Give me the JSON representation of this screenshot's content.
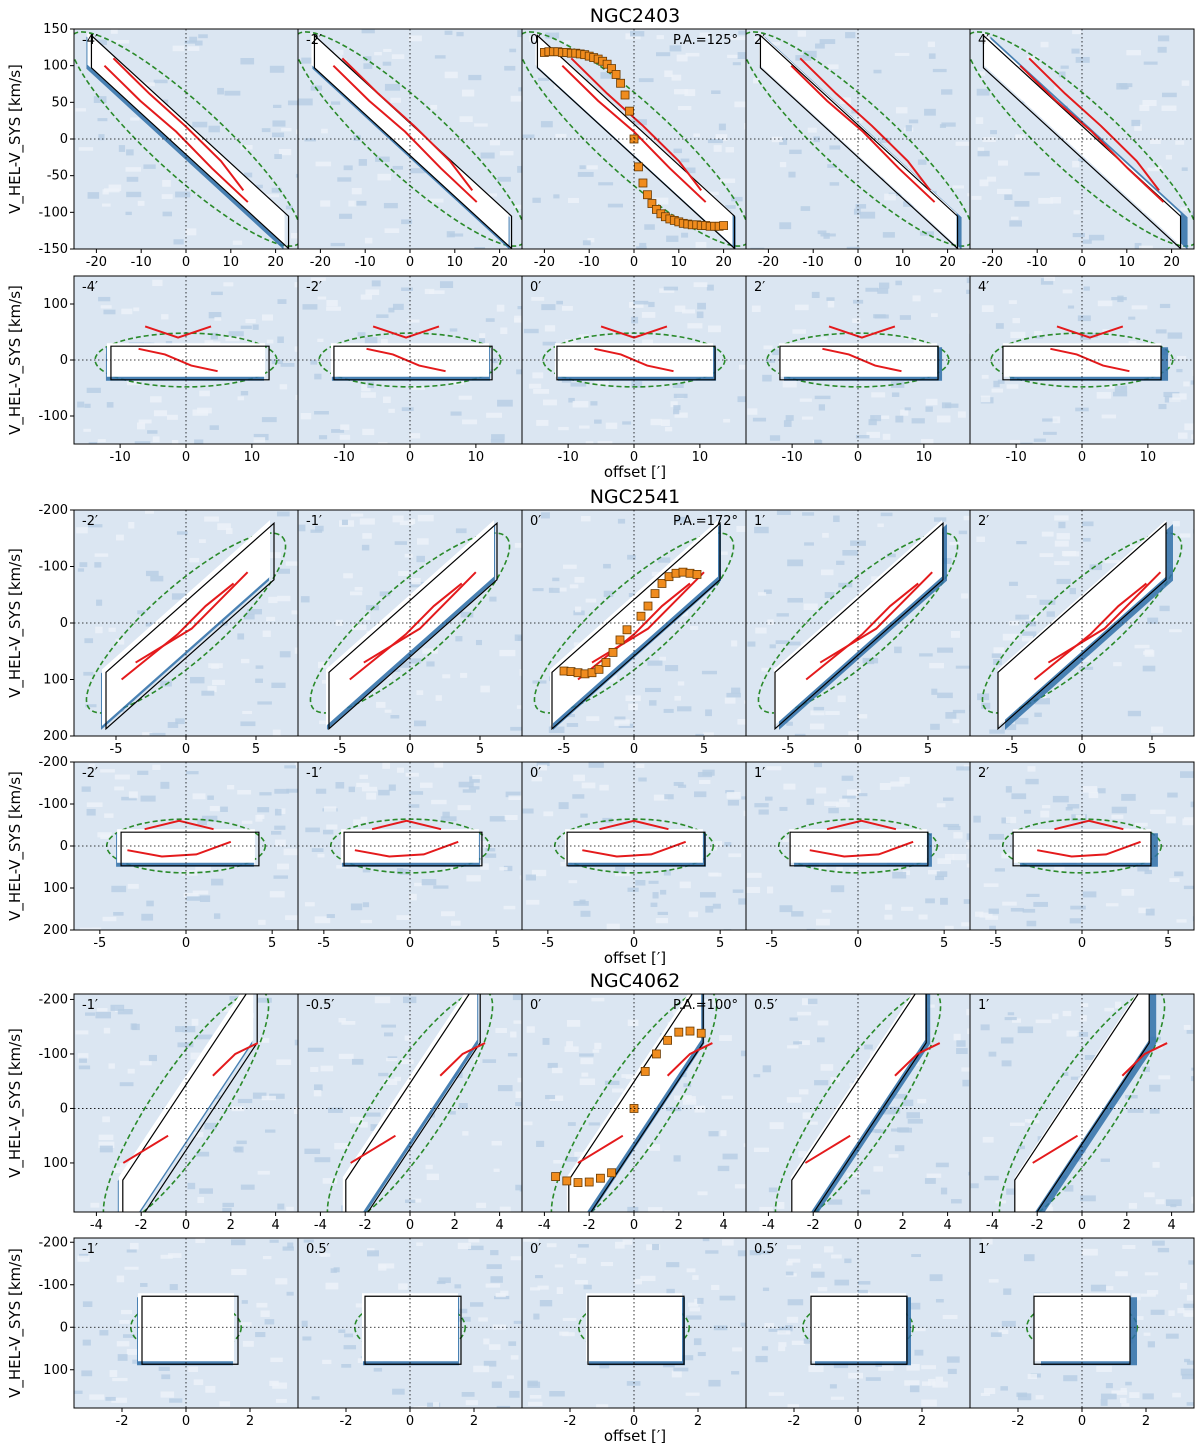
{
  "figure": {
    "shared_ylabel": "V_HEL-V_SYS [km/s]",
    "shared_xlabel": "offset [′]"
  },
  "chart_data": [
    {
      "type": "line",
      "title": "NGC2403",
      "xlabel": "",
      "ylabel": "V_HEL-V_SYS [km/s]",
      "xlim": [
        -25,
        25
      ],
      "ylim": [
        150,
        -150
      ],
      "xticks": [
        -20,
        -10,
        0,
        10,
        20
      ],
      "yticks": [
        -150,
        -100,
        -50,
        0,
        50,
        100,
        150
      ],
      "panel_labels": [
        "-4′",
        "-2′",
        "0′",
        "2′",
        "4′"
      ],
      "annotation": "P.A.=125°",
      "band": {
        "slope": -5.6,
        "width": 22,
        "extent": 22
      },
      "rotation_points": {
        "x": [
          -20,
          -19,
          -18,
          -17,
          -16,
          -15,
          -14,
          -13,
          -12,
          -11,
          -10,
          -9,
          -8,
          -7,
          -6,
          -5,
          -4,
          -3,
          -2,
          -1,
          0,
          1,
          2,
          3,
          4,
          5,
          6,
          7,
          8,
          9,
          10,
          11,
          12,
          13,
          14,
          15,
          16,
          17,
          18,
          19,
          20
        ],
        "y": [
          118,
          119,
          119,
          119,
          118,
          118,
          117,
          117,
          116,
          115,
          113,
          111,
          109,
          106,
          102,
          96,
          88,
          76,
          60,
          38,
          0,
          -38,
          -60,
          -76,
          -88,
          -96,
          -102,
          -106,
          -109,
          -111,
          -113,
          -115,
          -116,
          -117,
          -117,
          -118,
          -118,
          -119,
          -119,
          -119,
          -118
        ]
      },
      "red_models": [
        {
          "x": [
            -16,
            -8,
            0,
            8,
            16
          ],
          "y": [
            100,
            52,
            10,
            -40,
            -86
          ]
        },
        {
          "x": [
            -14,
            -6,
            2,
            10,
            15
          ],
          "y": [
            110,
            62,
            18,
            -30,
            -70
          ]
        }
      ]
    },
    {
      "type": "line",
      "title": "",
      "xlabel": "offset [′]",
      "ylabel": "V_HEL-V_SYS [km/s]",
      "xlim": [
        -17,
        17
      ],
      "ylim": [
        150,
        -150
      ],
      "xticks": [
        -10,
        0,
        10
      ],
      "yticks": [
        -100,
        0,
        100
      ],
      "panel_labels": [
        "-4′",
        "-2′",
        "0′",
        "2′",
        "4′"
      ],
      "band": {
        "slope": 0,
        "width": 30,
        "extent": 12
      },
      "red_models": [
        {
          "x": [
            -6,
            -2,
            2,
            6
          ],
          "y": [
            20,
            10,
            -10,
            -20
          ]
        },
        {
          "x": [
            -5,
            0,
            5
          ],
          "y": [
            60,
            40,
            60
          ]
        }
      ]
    },
    {
      "type": "line",
      "title": "NGC2541",
      "xlabel": "",
      "ylabel": "V_HEL-V_SYS [km/s]",
      "xlim": [
        -8,
        8
      ],
      "ylim": [
        -200,
        200
      ],
      "xticks": [
        -5,
        0,
        5
      ],
      "yticks": [
        -200,
        -100,
        0,
        100,
        200
      ],
      "panel_labels": [
        "-2′",
        "-1′",
        "0′",
        "1′",
        "2′"
      ],
      "annotation": "P.A.=172°",
      "band": {
        "slope": -22,
        "width": 50,
        "extent": 6
      },
      "rotation_points": {
        "x": [
          -5,
          -4.5,
          -4,
          -3.5,
          -3,
          -2.5,
          -2,
          -1.5,
          -1,
          -0.5,
          0.5,
          1,
          1.5,
          2,
          2.5,
          3,
          3.5,
          4,
          4.5
        ],
        "y": [
          85,
          86,
          88,
          90,
          88,
          82,
          70,
          52,
          30,
          12,
          -12,
          -30,
          -52,
          -70,
          -82,
          -88,
          -90,
          -88,
          -86
        ]
      },
      "red_models": [
        {
          "x": [
            -3,
            -1,
            1,
            3,
            5
          ],
          "y": [
            70,
            40,
            10,
            -40,
            -90
          ]
        },
        {
          "x": [
            -4,
            -2,
            0,
            2,
            4
          ],
          "y": [
            100,
            60,
            20,
            -30,
            -70
          ]
        }
      ]
    },
    {
      "type": "line",
      "title": "",
      "xlabel": "offset [′]",
      "ylabel": "V_HEL-V_SYS [km/s]",
      "xlim": [
        -6.5,
        6.5
      ],
      "ylim": [
        -200,
        200
      ],
      "xticks": [
        -5,
        0,
        5
      ],
      "yticks": [
        -200,
        -100,
        0,
        100,
        200
      ],
      "panel_labels": [
        "-2′",
        "-1′",
        "0′",
        "1′",
        "2′"
      ],
      "band": {
        "slope": 0,
        "width": 40,
        "extent": 4
      },
      "red_models": [
        {
          "x": [
            -3,
            -1,
            1,
            3
          ],
          "y": [
            10,
            25,
            20,
            -10
          ]
        },
        {
          "x": [
            -2,
            0,
            2
          ],
          "y": [
            -40,
            -60,
            -40
          ]
        }
      ]
    },
    {
      "type": "line",
      "title": "NGC4062",
      "xlabel": "",
      "ylabel": "V_HEL-V_SYS [km/s]",
      "xlim": [
        -5,
        5
      ],
      "ylim": [
        -210,
        190
      ],
      "xticks": [
        -4,
        -2,
        0,
        2,
        4
      ],
      "yticks": [
        -200,
        -100,
        0,
        100
      ],
      "panel_labels": [
        "-1′",
        "-0.5′",
        "0′",
        "0.5′",
        "1′"
      ],
      "annotation": "P.A.=100°",
      "band": {
        "slope": -62,
        "width": 60,
        "extent": 3
      },
      "rotation_points": {
        "x": [
          -3.5,
          -3,
          -2.5,
          -2,
          -1.5,
          -1,
          0,
          0.5,
          1,
          1.5,
          2,
          2.5,
          3
        ],
        "y": [
          125,
          133,
          136,
          135,
          128,
          118,
          0,
          -68,
          -100,
          -125,
          -140,
          -142,
          -138
        ]
      },
      "red_models": [
        {
          "x": [
            -2.5,
            -1.5,
            -0.5
          ],
          "y": [
            100,
            75,
            50
          ]
        },
        {
          "x": [
            1.5,
            2.5,
            3.5
          ],
          "y": [
            -60,
            -100,
            -120
          ]
        }
      ]
    },
    {
      "type": "line",
      "title": "",
      "xlabel": "offset [′]",
      "ylabel": "V_HEL-V_SYS [km/s]",
      "xlim": [
        -3.5,
        3.5
      ],
      "ylim": [
        -210,
        190
      ],
      "xticks": [
        -2,
        0,
        2
      ],
      "yticks": [
        -200,
        -100,
        0,
        100
      ],
      "panel_labels": [
        "-1′",
        "0.5′",
        "0′",
        "0.5′",
        "1′"
      ],
      "band": {
        "slope": 0,
        "width": 80,
        "extent": 1.5
      },
      "red_models": []
    }
  ]
}
